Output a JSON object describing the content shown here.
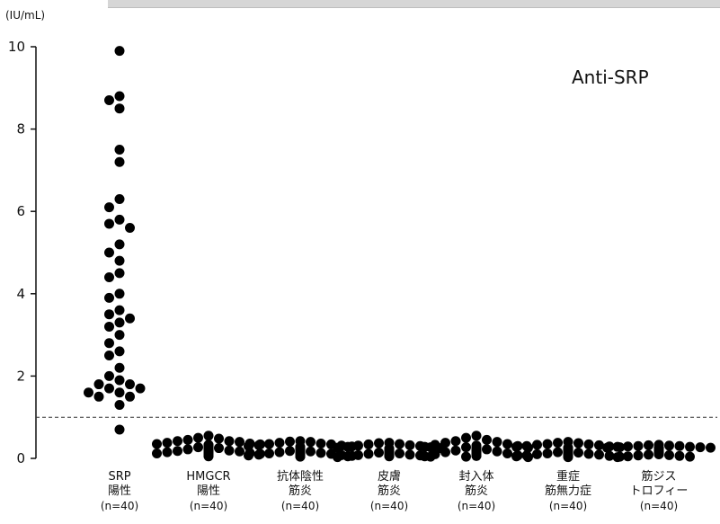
{
  "chart_data": {
    "type": "scatter",
    "title": "Anti-SRP",
    "unit": "(IU/mL)",
    "ylim": [
      0,
      10
    ],
    "yticks": [
      0,
      2,
      4,
      6,
      8,
      10
    ],
    "threshold": 1,
    "threshold_style": "dashed",
    "categories": [
      {
        "line1": "SRP",
        "line2": "陽性",
        "n": "(n=40)"
      },
      {
        "line1": "HMGCR",
        "line2": "陽性",
        "n": "(n=40)"
      },
      {
        "line1": "抗体陰性",
        "line2": "筋炎",
        "n": "(n=40)"
      },
      {
        "line1": "皮膚",
        "line2": "筋炎",
        "n": "(n=40)"
      },
      {
        "line1": "封入体",
        "line2": "筋炎",
        "n": "(n=40)"
      },
      {
        "line1": "重症",
        "line2": "筋無力症",
        "n": "(n=40)"
      },
      {
        "line1": "筋ジス",
        "line2": "トロフィー",
        "n": "(n=40)"
      }
    ],
    "series": [
      {
        "values": [
          9.9,
          8.8,
          8.7,
          8.5,
          7.5,
          7.2,
          6.3,
          6.1,
          5.8,
          5.7,
          5.6,
          5.2,
          5.0,
          4.8,
          4.5,
          4.4,
          4.0,
          3.9,
          3.6,
          3.5,
          3.4,
          3.3,
          3.2,
          3.0,
          2.8,
          2.6,
          2.5,
          2.2,
          2.0,
          1.9,
          1.8,
          1.8,
          1.7,
          1.7,
          1.6,
          1.6,
          1.5,
          1.5,
          1.3,
          0.7
        ]
      },
      {
        "values": [
          0.55,
          0.5,
          0.48,
          0.45,
          0.42,
          0.42,
          0.4,
          0.38,
          0.36,
          0.35,
          0.34,
          0.33,
          0.32,
          0.3,
          0.3,
          0.28,
          0.27,
          0.26,
          0.25,
          0.24,
          0.23,
          0.22,
          0.21,
          0.2,
          0.19,
          0.18,
          0.17,
          0.16,
          0.15,
          0.14,
          0.13,
          0.12,
          0.11,
          0.1,
          0.09,
          0.08,
          0.08,
          0.07,
          0.06,
          0.05
        ]
      },
      {
        "values": [
          0.42,
          0.41,
          0.4,
          0.38,
          0.36,
          0.35,
          0.34,
          0.32,
          0.31,
          0.3,
          0.29,
          0.28,
          0.27,
          0.26,
          0.25,
          0.24,
          0.23,
          0.22,
          0.21,
          0.2,
          0.19,
          0.18,
          0.17,
          0.16,
          0.15,
          0.14,
          0.14,
          0.13,
          0.12,
          0.11,
          0.1,
          0.1,
          0.09,
          0.08,
          0.08,
          0.07,
          0.06,
          0.05,
          0.05,
          0.04
        ]
      },
      {
        "values": [
          0.38,
          0.37,
          0.35,
          0.34,
          0.32,
          0.31,
          0.3,
          0.28,
          0.27,
          0.26,
          0.25,
          0.24,
          0.23,
          0.22,
          0.21,
          0.2,
          0.2,
          0.19,
          0.18,
          0.17,
          0.16,
          0.15,
          0.15,
          0.14,
          0.13,
          0.12,
          0.12,
          0.11,
          0.1,
          0.1,
          0.09,
          0.08,
          0.08,
          0.07,
          0.06,
          0.06,
          0.05,
          0.05,
          0.04,
          0.03
        ]
      },
      {
        "values": [
          0.55,
          0.5,
          0.45,
          0.42,
          0.4,
          0.38,
          0.35,
          0.33,
          0.31,
          0.3,
          0.28,
          0.27,
          0.26,
          0.25,
          0.24,
          0.23,
          0.22,
          0.21,
          0.2,
          0.19,
          0.18,
          0.17,
          0.16,
          0.15,
          0.14,
          0.14,
          0.13,
          0.12,
          0.11,
          0.1,
          0.1,
          0.09,
          0.08,
          0.08,
          0.07,
          0.06,
          0.06,
          0.05,
          0.04,
          0.03
        ]
      },
      {
        "values": [
          0.4,
          0.38,
          0.37,
          0.35,
          0.34,
          0.33,
          0.32,
          0.3,
          0.29,
          0.28,
          0.27,
          0.26,
          0.25,
          0.24,
          0.23,
          0.22,
          0.21,
          0.2,
          0.2,
          0.19,
          0.18,
          0.17,
          0.16,
          0.15,
          0.15,
          0.14,
          0.13,
          0.12,
          0.11,
          0.1,
          0.1,
          0.09,
          0.08,
          0.08,
          0.07,
          0.06,
          0.06,
          0.05,
          0.04,
          0.03
        ]
      },
      {
        "values": [
          0.33,
          0.32,
          0.31,
          0.3,
          0.3,
          0.29,
          0.28,
          0.28,
          0.27,
          0.26,
          0.26,
          0.25,
          0.24,
          0.24,
          0.23,
          0.22,
          0.22,
          0.21,
          0.2,
          0.2,
          0.19,
          0.18,
          0.18,
          0.17,
          0.16,
          0.16,
          0.15,
          0.14,
          0.13,
          0.12,
          0.11,
          0.1,
          0.1,
          0.09,
          0.08,
          0.07,
          0.06,
          0.05,
          0.04,
          0.03
        ]
      }
    ]
  }
}
